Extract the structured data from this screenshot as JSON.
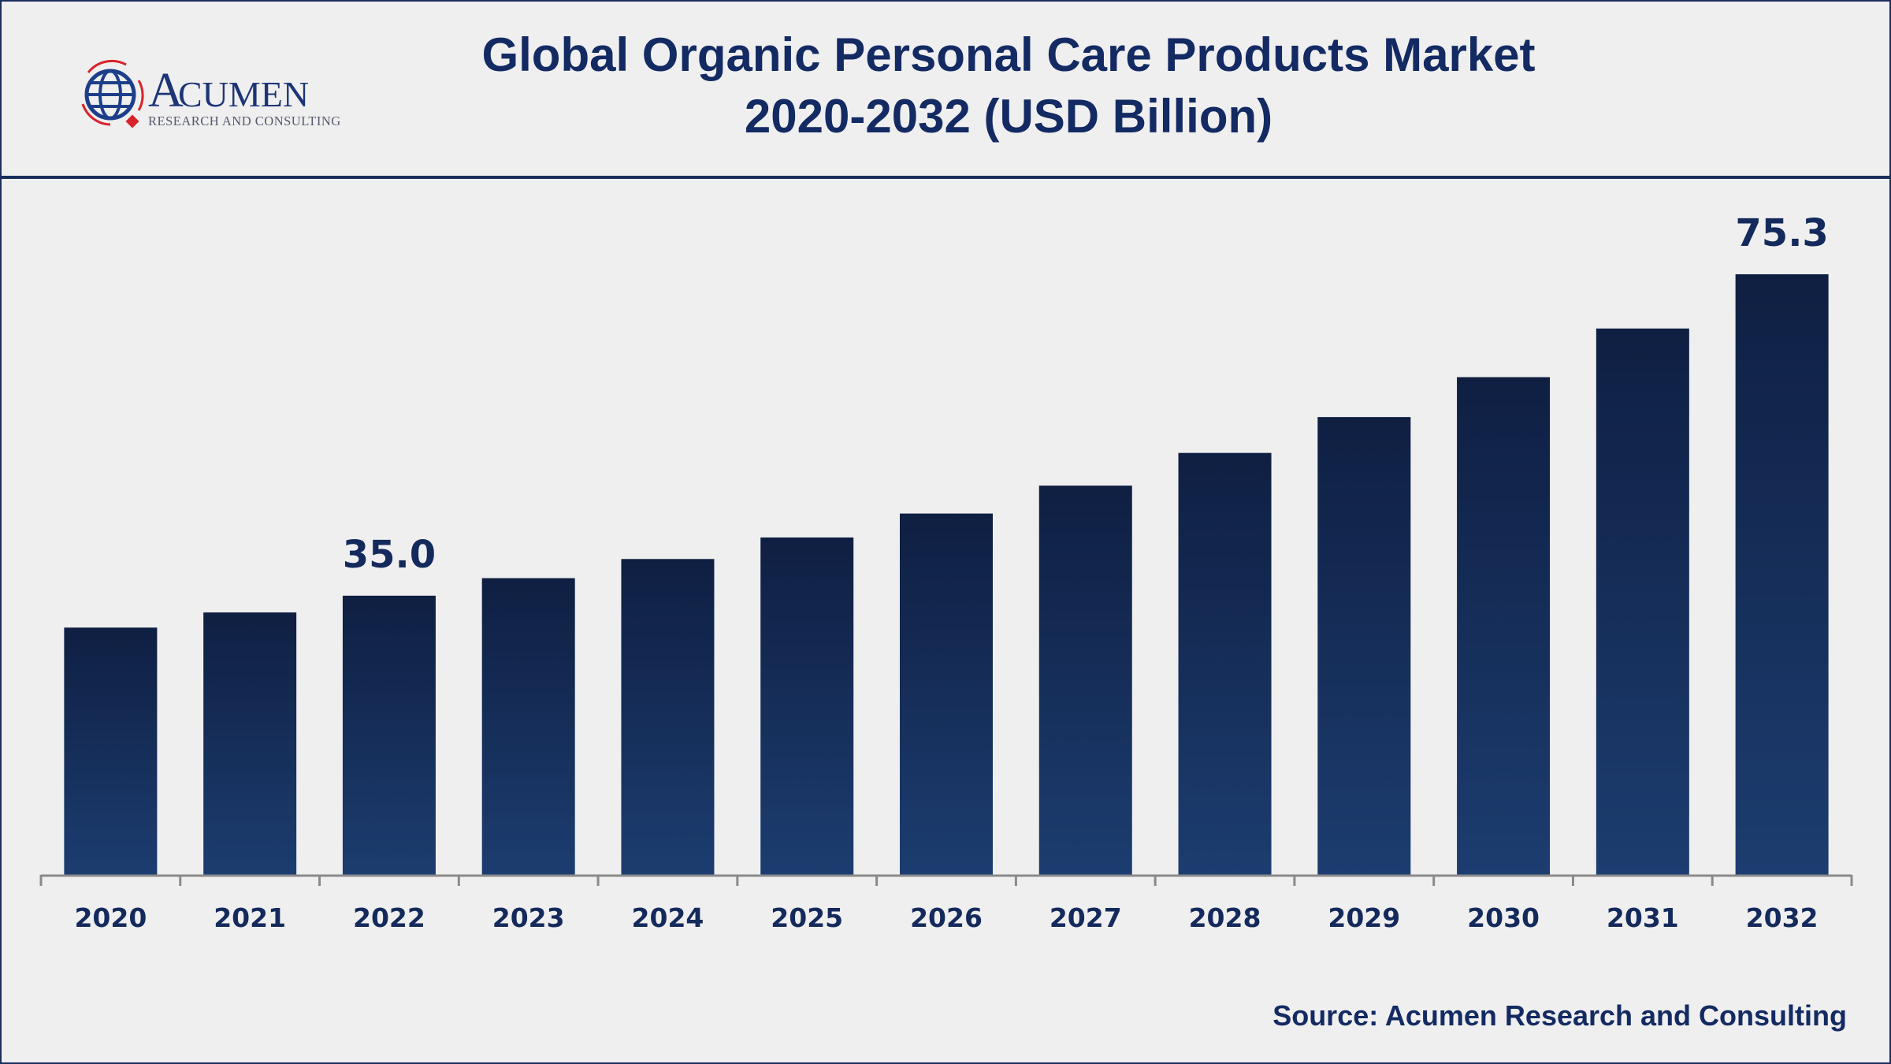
{
  "logo": {
    "name": "Acumen",
    "subtitle": "RESEARCH AND CONSULTING"
  },
  "source": "Source: Acumen Research and Consulting",
  "colors": {
    "bar_top": "#0f1f42",
    "bar_bottom": "#1c3d70",
    "text": "#132a63",
    "logo_red": "#d8232a"
  },
  "chart_data": {
    "type": "bar",
    "title": "Global Organic Personal Care Products Market",
    "subtitle": "2020-2032 (USD Billion)",
    "categories": [
      "2020",
      "2021",
      "2022",
      "2023",
      "2024",
      "2025",
      "2026",
      "2027",
      "2028",
      "2029",
      "2030",
      "2031",
      "2032"
    ],
    "values": [
      31.0,
      32.9,
      35.0,
      37.2,
      39.6,
      42.3,
      45.3,
      48.8,
      52.9,
      57.4,
      62.4,
      68.5,
      75.3
    ],
    "data_labels": {
      "2022": "35.0",
      "2032": "75.3"
    },
    "xlabel": "",
    "ylabel": "",
    "ylim": [
      0,
      75.3
    ],
    "grid": false,
    "legend": "none"
  }
}
